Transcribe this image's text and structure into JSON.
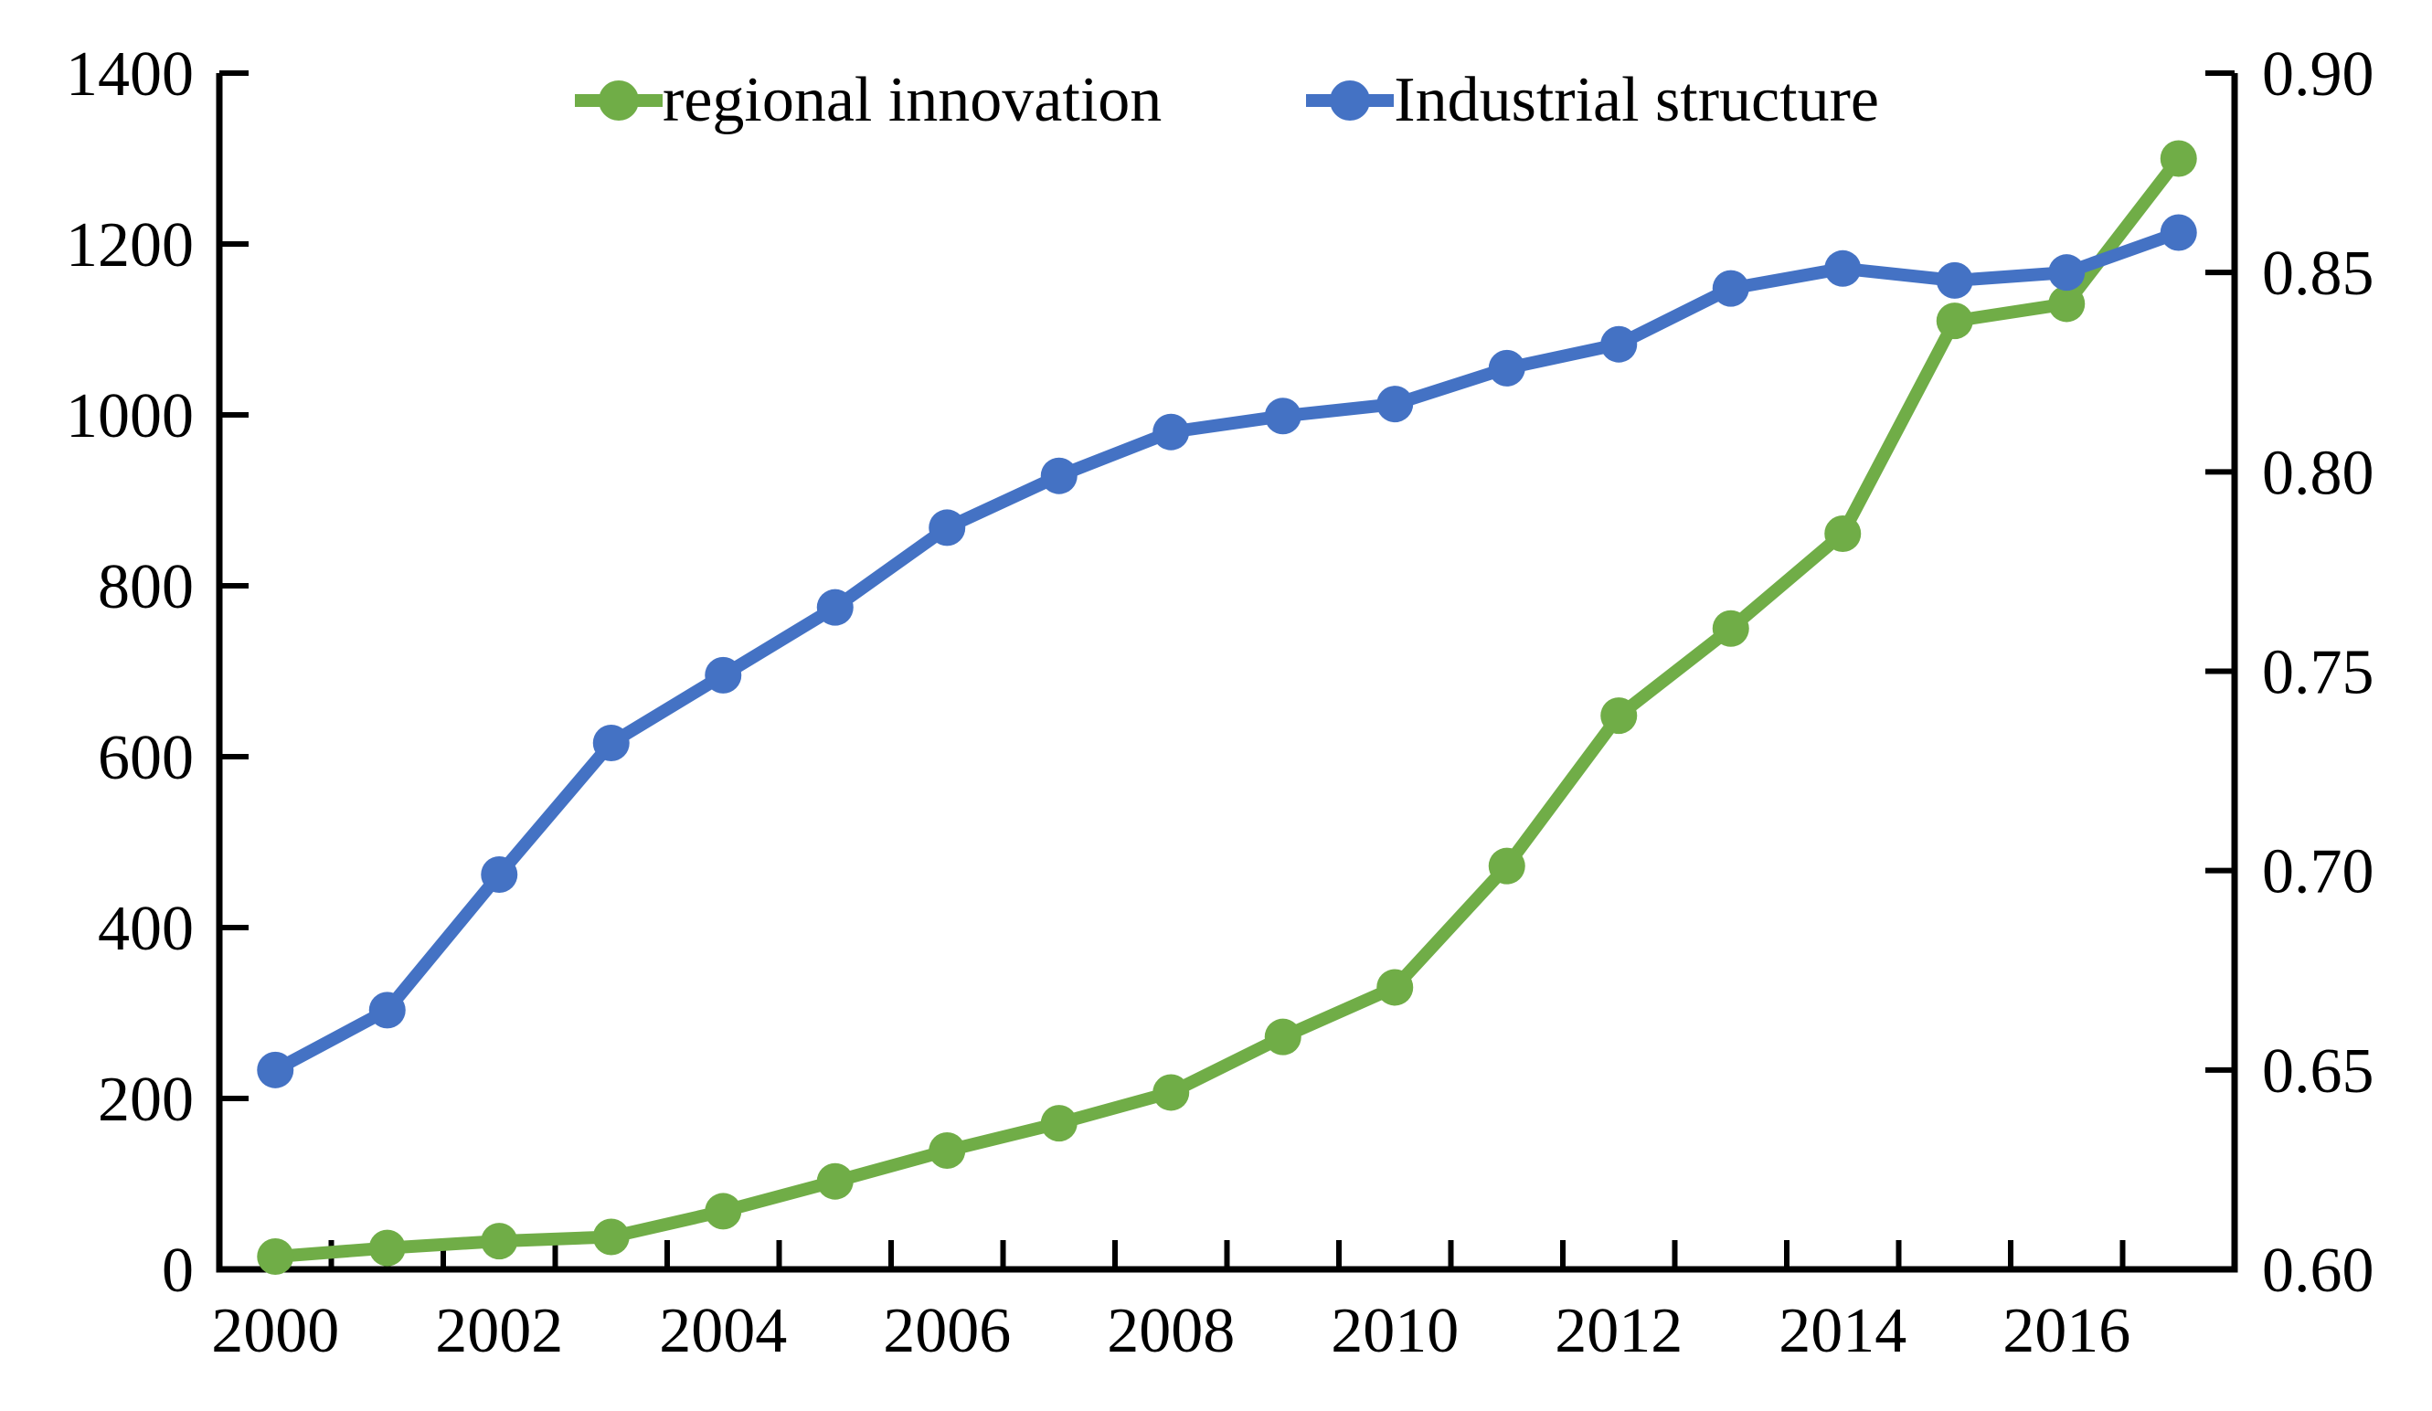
{
  "chart_data": {
    "type": "line",
    "x": [
      2000,
      2001,
      2002,
      2003,
      2004,
      2005,
      2006,
      2007,
      2008,
      2009,
      2010,
      2011,
      2012,
      2013,
      2014,
      2015,
      2016,
      2017
    ],
    "x_tick_labels": [
      "2000",
      "2002",
      "2004",
      "2006",
      "2008",
      "2010",
      "2012",
      "2014",
      "2016"
    ],
    "x_label_years": [
      2000,
      2002,
      2004,
      2006,
      2008,
      2010,
      2012,
      2014,
      2016
    ],
    "series": [
      {
        "name": "regional innovation",
        "axis": "left",
        "color": "#70ad47",
        "values": [
          15,
          25,
          33,
          38,
          68,
          103,
          139,
          171,
          207,
          272,
          330,
          472,
          648,
          750,
          861,
          1110,
          1130,
          1300
        ]
      },
      {
        "name": "Industrial structure",
        "axis": "right",
        "color": "#4472c4",
        "values": [
          0.65,
          0.665,
          0.699,
          0.732,
          0.749,
          0.766,
          0.786,
          0.799,
          0.81,
          0.814,
          0.817,
          0.826,
          0.832,
          0.846,
          0.851,
          0.848,
          0.85,
          0.86
        ]
      }
    ],
    "left_axis": {
      "min": 0,
      "max": 1400,
      "step": 200,
      "tick_labels": [
        "0",
        "200",
        "400",
        "600",
        "800",
        "1000",
        "1200",
        "1400"
      ]
    },
    "right_axis": {
      "min": 0.6,
      "max": 0.9,
      "step": 0.05,
      "tick_labels": [
        "0.60",
        "0.65",
        "0.70",
        "0.75",
        "0.80",
        "0.85",
        "0.90"
      ]
    },
    "grid": false,
    "legend_position": "top",
    "title": "",
    "xlabel": "",
    "ylabel_left": "",
    "ylabel_right": ""
  },
  "legend": {
    "items": [
      {
        "label": "regional innovation",
        "color": "#70ad47"
      },
      {
        "label": "Industrial structure",
        "color": "#4472c4"
      }
    ]
  },
  "colors": {
    "axis": "#000000",
    "text": "#000000",
    "background": "#ffffff",
    "green": "#70ad47",
    "blue": "#4472c4"
  }
}
